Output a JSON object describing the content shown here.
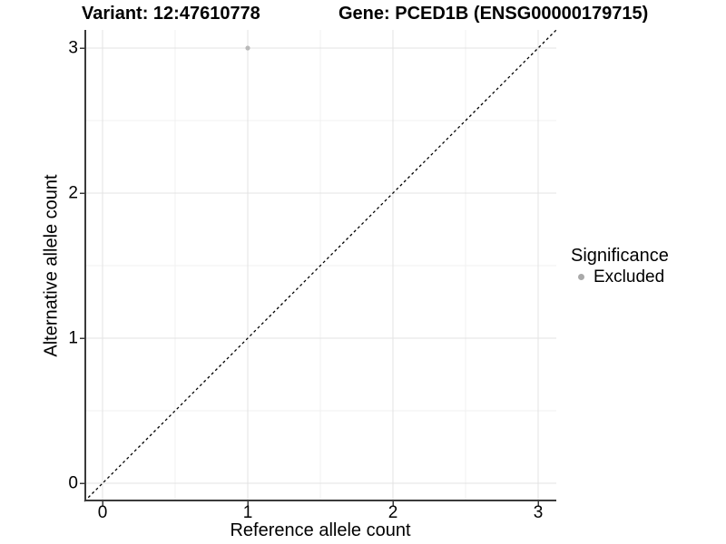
{
  "titles": {
    "variant": "Variant: 12:47610778",
    "gene": "Gene: PCED1B (ENSG00000179715)"
  },
  "legend": {
    "title": "Significance",
    "items": [
      {
        "label": "Excluded",
        "color": "#a9a9a9",
        "marker": "dot-icon"
      }
    ]
  },
  "chart_data": {
    "type": "scatter",
    "title": "Variant: 12:47610778    Gene: PCED1B (ENSG00000179715)",
    "xlabel": "Reference allele count",
    "ylabel": "Alternative allele count",
    "xlim": [
      -0.125,
      3.125
    ],
    "ylim": [
      -0.125,
      3.125
    ],
    "xticks": [
      0,
      1,
      2,
      3
    ],
    "yticks": [
      0,
      1,
      2,
      3
    ],
    "xticks_minor": [
      0.5,
      1.5,
      2.5
    ],
    "yticks_minor": [
      0.5,
      1.5,
      2.5
    ],
    "grid": true,
    "legend_position": "right",
    "series": [
      {
        "name": "Excluded",
        "color": "#b9b9b9",
        "points": [
          {
            "x": 1,
            "y": 3
          }
        ]
      }
    ],
    "reference_line": {
      "kind": "identity",
      "equation": "y = x",
      "style": "dashed",
      "color": "#000000"
    },
    "colors": {
      "grid_major": "#e3e3e3",
      "grid_minor": "#f0f0f0",
      "axis": "#3a3a3a",
      "background": "#ffffff"
    }
  }
}
